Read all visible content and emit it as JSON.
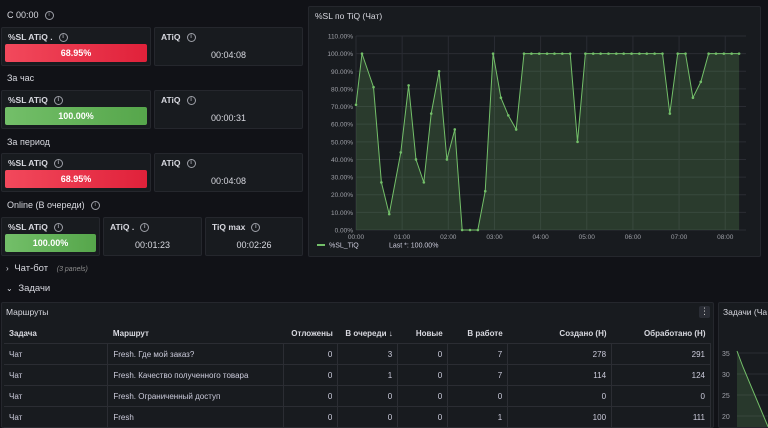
{
  "sections": {
    "s1": "С 00:00",
    "s2": "За час",
    "s3": "За период",
    "s4": "Online (В очереди)"
  },
  "stats": {
    "r1_sl_title": "%SL ATiQ .",
    "r1_sl_value": "68.95%",
    "r1_atiq_title": "ATiQ",
    "r1_atiq_value": "00:04:08",
    "r2_sl_title": "%SL ATiQ",
    "r2_sl_value": "100.00%",
    "r2_atiq_title": "ATiQ",
    "r2_atiq_value": "00:00:31",
    "r3_sl_title": "%SL ATiQ",
    "r3_sl_value": "68.95%",
    "r3_atiq_title": "ATiQ",
    "r3_atiq_value": "00:04:08",
    "r4_sl_title": "%SL ATiQ",
    "r4_sl_value": "100.00%",
    "r4_atiq_title": "ATiQ .",
    "r4_atiq_value": "00:01:23",
    "r4_max_title": "TiQ max",
    "r4_max_value": "00:02:26"
  },
  "colors": {
    "bad": "#e0213a",
    "good": "#56a64b",
    "line": "#73bf69"
  },
  "collapsed_row": {
    "title": "Чат-бот",
    "count": "(3 panels)"
  },
  "expanded_row": {
    "title": "Задачи"
  },
  "routes_panel": {
    "title": "Маршруты",
    "headers": [
      "Задача",
      "Маршрут",
      "Отложены",
      "В очереди ↓",
      "Новые",
      "В работе",
      "Создано (Н)",
      "Обработано (Н)"
    ],
    "rows": [
      [
        "Чат",
        "Fresh. Где мой заказ?",
        "0",
        "3",
        "0",
        "7",
        "278",
        "291"
      ],
      [
        "Чат",
        "Fresh. Качество полученного товара",
        "0",
        "1",
        "0",
        "7",
        "114",
        "124"
      ],
      [
        "Чат",
        "Fresh. Ограниченный доступ",
        "0",
        "0",
        "0",
        "0",
        "0",
        "0"
      ],
      [
        "Чат",
        "Fresh",
        "0",
        "0",
        "0",
        "1",
        "100",
        "111"
      ]
    ]
  },
  "side_panel": {
    "title": "Задачи (Ча",
    "ticks": [
      "35",
      "30",
      "25",
      "20"
    ]
  },
  "chart_data": {
    "type": "line",
    "title": "%SL по TiQ (Чат)",
    "xlabel": "",
    "ylabel": "",
    "ylim": [
      0,
      110
    ],
    "y_ticks": [
      "0.00%",
      "10.00%",
      "20.00%",
      "30.00%",
      "40.00%",
      "50.00%",
      "60.00%",
      "70.00%",
      "80.00%",
      "90.00%",
      "100.00%",
      "110.00%"
    ],
    "x_ticks": [
      "00:00",
      "01:00",
      "02:00",
      "03:00",
      "04:00",
      "05:00",
      "06:00",
      "07:00",
      "08:00"
    ],
    "x_range_hours": [
      0,
      8.45
    ],
    "legend": {
      "name": "%SL_TiQ",
      "stat": "Last *: 100.00%"
    },
    "series": [
      {
        "name": "%SL_TiQ",
        "x": [
          0,
          0.13,
          0.38,
          0.55,
          0.72,
          0.97,
          1.14,
          1.3,
          1.47,
          1.63,
          1.8,
          1.97,
          2.14,
          2.3,
          2.47,
          2.64,
          2.8,
          2.97,
          3.14,
          3.3,
          3.47,
          3.64,
          3.8,
          3.97,
          4.14,
          4.3,
          4.47,
          4.64,
          4.8,
          4.97,
          5.14,
          5.3,
          5.47,
          5.64,
          5.8,
          5.97,
          6.14,
          6.3,
          6.47,
          6.64,
          6.8,
          6.97,
          7.14,
          7.3,
          7.47,
          7.64,
          7.8,
          7.97,
          8.14,
          8.3
        ],
        "values": [
          71,
          100,
          81,
          27,
          9,
          44,
          82,
          40,
          27,
          66,
          90,
          40,
          57,
          0,
          0,
          0,
          22,
          100,
          75,
          65,
          57,
          100,
          100,
          100,
          100,
          100,
          100,
          100,
          50,
          100,
          100,
          100,
          100,
          100,
          100,
          100,
          100,
          100,
          100,
          100,
          66,
          100,
          100,
          75,
          84,
          100,
          100,
          100,
          100,
          100
        ]
      }
    ]
  }
}
